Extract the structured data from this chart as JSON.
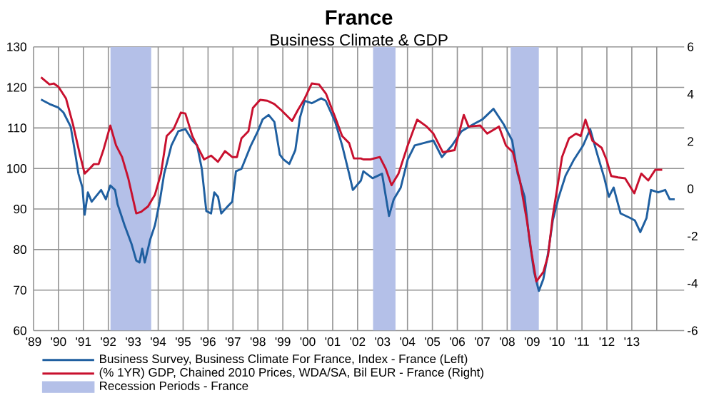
{
  "chart_data": {
    "type": "line",
    "title": "France",
    "subtitle": "Business Climate & GDP",
    "xlim": [
      1989.0,
      2015.1
    ],
    "xticks": [
      {
        "value": 1989,
        "label": "'89"
      },
      {
        "value": 1990,
        "label": "'90"
      },
      {
        "value": 1991,
        "label": "'91"
      },
      {
        "value": 1992,
        "label": "'92"
      },
      {
        "value": 1993,
        "label": "'93"
      },
      {
        "value": 1994,
        "label": "'94"
      },
      {
        "value": 1995,
        "label": "'95"
      },
      {
        "value": 1996,
        "label": "'96"
      },
      {
        "value": 1997,
        "label": "'97"
      },
      {
        "value": 1998,
        "label": "'98"
      },
      {
        "value": 1999,
        "label": "'99"
      },
      {
        "value": 2000,
        "label": "'00"
      },
      {
        "value": 2001,
        "label": "'01"
      },
      {
        "value": 2002,
        "label": "'02"
      },
      {
        "value": 2003,
        "label": "'03"
      },
      {
        "value": 2004,
        "label": "'04"
      },
      {
        "value": 2005,
        "label": "'05"
      },
      {
        "value": 2006,
        "label": "'06"
      },
      {
        "value": 2007,
        "label": "'07"
      },
      {
        "value": 2008,
        "label": "'08"
      },
      {
        "value": 2009,
        "label": "'09"
      },
      {
        "value": 2010,
        "label": "'10"
      },
      {
        "value": 2011,
        "label": "'11"
      },
      {
        "value": 2012,
        "label": "'12"
      },
      {
        "value": 2013,
        "label": "'13"
      },
      {
        "value": 2014,
        "label": null
      }
    ],
    "ylim": [
      60,
      130
    ],
    "yticks": [
      60,
      70,
      80,
      90,
      100,
      110,
      120,
      130
    ],
    "y2lim": [
      -6,
      6
    ],
    "y2ticks": [
      -6,
      -4,
      -2,
      0,
      2,
      4,
      6
    ],
    "grid": true,
    "legend": "bottom",
    "bands": [
      {
        "axis": "x",
        "from": 1992.08,
        "to": 1993.72,
        "label": "Recession Periods - France",
        "color": "#b4c0e8"
      },
      {
        "axis": "x",
        "from": 2002.62,
        "to": 2003.52,
        "color": "#b4c0e8"
      },
      {
        "axis": "x",
        "from": 2008.14,
        "to": 2009.27,
        "color": "#b4c0e8"
      }
    ],
    "series": [
      {
        "name": "Business Survey, Business Climate For France, Index - France  (Left)",
        "color": "#1f5fa0",
        "x": [
          1989.3,
          1989.64,
          1990.0,
          1990.2,
          1990.49,
          1990.68,
          1990.8,
          1990.96,
          1991.05,
          1991.18,
          1991.33,
          1991.71,
          1991.9,
          1992.08,
          1992.27,
          1992.37,
          1992.65,
          1992.93,
          1993.12,
          1993.25,
          1993.36,
          1993.46,
          1993.68,
          1993.87,
          1994.06,
          1994.24,
          1994.53,
          1994.81,
          1995.09,
          1995.37,
          1995.56,
          1995.75,
          1995.93,
          1996.12,
          1996.25,
          1996.4,
          1996.53,
          1996.78,
          1996.97,
          1997.12,
          1997.34,
          1997.53,
          1997.72,
          1998.0,
          1998.19,
          1998.43,
          1998.66,
          1998.88,
          1999.03,
          1999.26,
          1999.5,
          1999.69,
          1999.88,
          2000.16,
          2000.54,
          2000.72,
          2001.1,
          2001.38,
          2001.66,
          2001.81,
          2002.13,
          2002.23,
          2002.6,
          2002.98,
          2003.26,
          2003.45,
          2003.73,
          2004.01,
          2004.29,
          2004.67,
          2005.04,
          2005.38,
          2005.79,
          2006.17,
          2006.64,
          2007.01,
          2007.45,
          2007.86,
          2008.2,
          2008.42,
          2008.7,
          2008.89,
          2009.08,
          2009.27,
          2009.45,
          2009.64,
          2009.83,
          2010.07,
          2010.34,
          2010.68,
          2011.05,
          2011.33,
          2011.62,
          2011.9,
          2012.08,
          2012.27,
          2012.55,
          2012.93,
          2013.12,
          2013.34,
          2013.59,
          2013.77,
          2014.06,
          2014.34,
          2014.52,
          2014.72
        ],
        "values": [
          117.0,
          115.9,
          115,
          113.8,
          110.3,
          103.4,
          98.7,
          95.3,
          88.6,
          94.1,
          91.8,
          94.7,
          92.4,
          95.8,
          94.7,
          91.2,
          86,
          81.4,
          77.3,
          76.8,
          80.2,
          76.8,
          82.5,
          86,
          91.8,
          98.7,
          105.7,
          109.2,
          109.7,
          106.9,
          105.7,
          99.9,
          89.5,
          88.9,
          94.1,
          93,
          88.9,
          90.6,
          91.8,
          99.3,
          99.9,
          102.8,
          105.7,
          109.2,
          112.1,
          113.2,
          111.5,
          103.4,
          102.2,
          101.1,
          104.5,
          112.6,
          116.7,
          116.1,
          117.3,
          116.7,
          111.5,
          105.7,
          98.7,
          94.7,
          97,
          99.3,
          97.6,
          98.7,
          88.3,
          92.4,
          95.3,
          102.2,
          105.7,
          106.3,
          106.9,
          102.8,
          105.7,
          109.2,
          110.9,
          112.1,
          114.7,
          110.9,
          106.9,
          98.7,
          93,
          82.5,
          74.4,
          69.8,
          72.7,
          79.1,
          87.2,
          93,
          98.2,
          102.2,
          105.7,
          109.7,
          103.4,
          97.6,
          93,
          95.3,
          88.9,
          87.8,
          87.2,
          84.3,
          87.8,
          94.7,
          94.1,
          94.7,
          92.4,
          92.4
        ]
      },
      {
        "name": "(% 1YR) GDP, Chained 2010 Prices, WDA/SA, Bil EUR - France  (Right)",
        "color": "#c8102e",
        "axis": "y2",
        "x": [
          1989.3,
          1989.64,
          1989.81,
          1990.0,
          1990.3,
          1990.58,
          1990.86,
          1991.05,
          1991.24,
          1991.42,
          1991.61,
          1991.8,
          1992.08,
          1992.31,
          1992.55,
          1992.8,
          1993.12,
          1993.31,
          1993.59,
          1993.87,
          1994.11,
          1994.34,
          1994.62,
          1994.91,
          1995.09,
          1995.37,
          1995.65,
          1995.84,
          1996.12,
          1996.4,
          1996.68,
          1996.97,
          1997.16,
          1997.34,
          1997.62,
          1997.8,
          1998.09,
          1998.38,
          1998.66,
          1998.94,
          1999.37,
          1999.6,
          1999.88,
          2000.16,
          2000.45,
          2000.73,
          2001.1,
          2001.38,
          2001.66,
          2001.85,
          2002.13,
          2002.23,
          2002.51,
          2002.89,
          2003.13,
          2003.36,
          2003.64,
          2004.01,
          2004.39,
          2004.77,
          2005.04,
          2005.42,
          2005.89,
          2006.26,
          2006.45,
          2006.92,
          2007.2,
          2007.67,
          2007.95,
          2008.23,
          2008.51,
          2008.79,
          2008.98,
          2009.17,
          2009.45,
          2009.64,
          2009.83,
          2010.07,
          2010.2,
          2010.48,
          2010.76,
          2010.95,
          2011.14,
          2011.42,
          2011.79,
          2011.98,
          2012.17,
          2012.45,
          2012.73,
          2013.1,
          2013.38,
          2013.66,
          2013.94,
          2014.22
        ],
        "values": [
          4.71,
          4.41,
          4.45,
          4.31,
          3.82,
          2.73,
          1.44,
          0.64,
          0.84,
          1.04,
          1.04,
          1.63,
          2.67,
          1.83,
          1.34,
          0.44,
          -1.04,
          -0.98,
          -0.75,
          -0.25,
          0.64,
          2.23,
          2.53,
          3.22,
          3.18,
          2.23,
          1.63,
          1.24,
          1.4,
          1.14,
          1.59,
          1.34,
          1.34,
          2.13,
          2.43,
          3.42,
          3.76,
          3.72,
          3.58,
          3.32,
          2.87,
          3.32,
          3.82,
          4.45,
          4.41,
          4.02,
          3.02,
          2.23,
          1.93,
          1.28,
          1.28,
          1.24,
          1.24,
          1.34,
          0.84,
          0.15,
          0.64,
          1.83,
          2.92,
          2.63,
          2.33,
          1.54,
          1.63,
          3.12,
          2.63,
          2.67,
          2.33,
          2.63,
          1.83,
          1.54,
          0.35,
          -1.34,
          -2.73,
          -3.92,
          -3.52,
          -2.83,
          -1.14,
          0.44,
          1.34,
          2.13,
          2.33,
          2.23,
          2.92,
          2.03,
          1.73,
          1.24,
          0.54,
          0.48,
          0.44,
          -0.19,
          0.64,
          0.35,
          0.8,
          0.8
        ]
      }
    ]
  }
}
